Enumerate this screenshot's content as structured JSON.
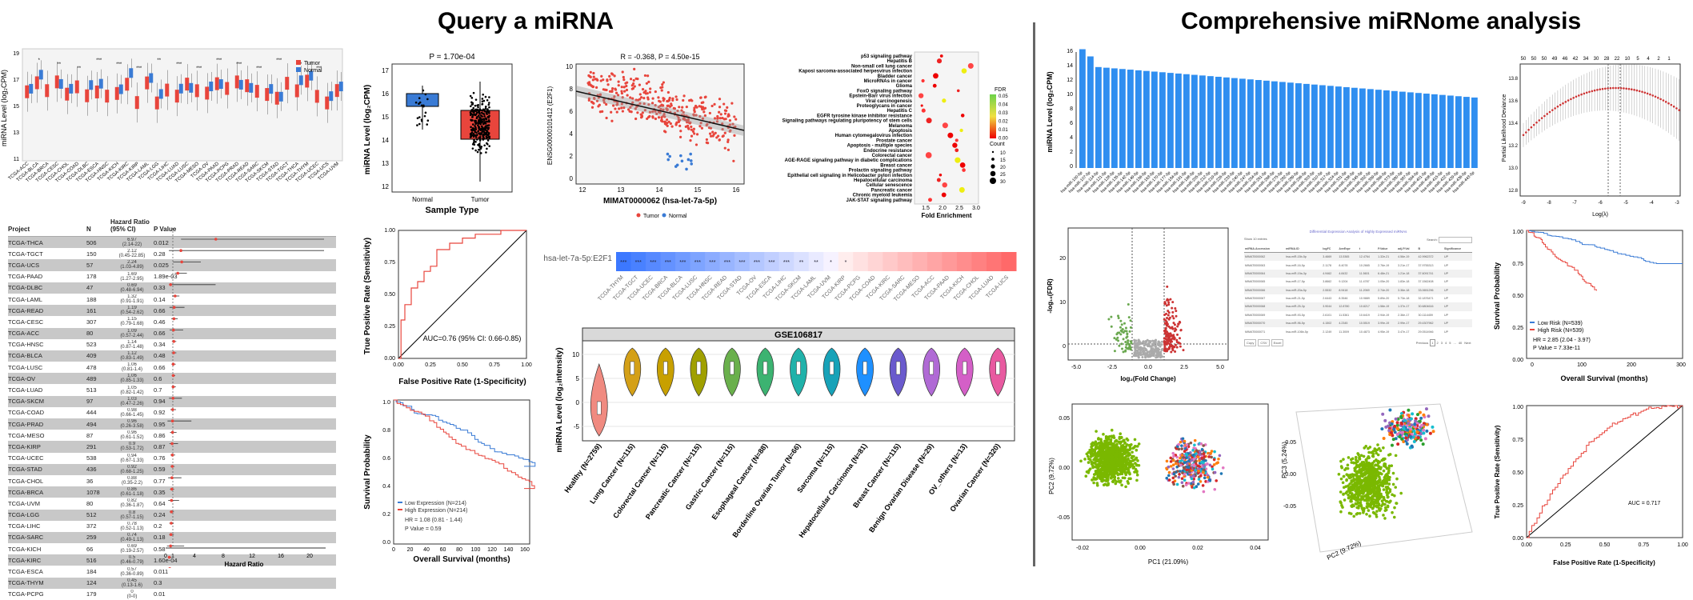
{
  "titles": {
    "left": "Query a miRNA",
    "right": "Comprehensive miRNome analysis"
  },
  "colors": {
    "tumor": "#e8453c",
    "normal": "#3a7bd5",
    "bar": "#2f8ef0",
    "green": "#6aa84f",
    "red": "#cc3333"
  },
  "boxplot_pan": {
    "ylabel": "miRNA Level (log₂CPM)",
    "legend": [
      "Tumor",
      "Normal"
    ],
    "yticks": [
      "19",
      "17",
      "15",
      "13",
      "11"
    ],
    "projects": [
      "TCGA-ACC",
      "TCGA-BLCA",
      "TCGA-BRCA",
      "TCGA-CESC",
      "TCGA-CHOL",
      "TCGA-COAD",
      "TCGA-DLBC",
      "TCGA-ESCA",
      "TCGA-HNSC",
      "TCGA-KICH",
      "TCGA-KIRC",
      "TCGA-KIRP",
      "TCGA-LAML",
      "TCGA-LGG",
      "TCGA-LIHC",
      "TCGA-LUAD",
      "TCGA-LUSC",
      "TCGA-MESO",
      "TCGA-OV",
      "TCGA-PAAD",
      "TCGA-PCPG",
      "TCGA-PRAD",
      "TCGA-READ",
      "TCGA-SARC",
      "TCGA-SKCM",
      "TCGA-STAD",
      "TCGA-TGCT",
      "TCGA-THCA",
      "TCGA-THYM",
      "TCGA-UCEC",
      "TCGA-UCS",
      "TCGA-UVM"
    ],
    "stars": [
      "*",
      "**",
      "**",
      "***",
      "***",
      "***",
      "**",
      "***",
      "***",
      "***",
      "***",
      "***",
      "***",
      "***",
      "***"
    ]
  },
  "forest": {
    "headers": {
      "project": "Project",
      "n": "N",
      "hr": "Hazard Ratio (95% CI)",
      "p": "P Value"
    },
    "xlabel": "Hazard Ratio",
    "xticks": [
      "0",
      "1",
      "4",
      "8",
      "12",
      "16",
      "20"
    ],
    "rows": [
      {
        "project": "TCGA-THCA",
        "n": "506",
        "hr": "6.97",
        "ci": "(2.14-22)",
        "p": "0.012",
        "est": 6.97,
        "lo": 2.14,
        "hi": 22
      },
      {
        "project": "TCGA-TGCT",
        "n": "150",
        "hr": "2.12",
        "ci": "(0.45-22.85)",
        "p": "0.28",
        "est": 2.12,
        "lo": 0.45,
        "hi": 22.85
      },
      {
        "project": "TCGA-UCS",
        "n": "57",
        "hr": "2.24",
        "ci": "(1.03-4.89)",
        "p": "0.025",
        "est": 2.24,
        "lo": 1.03,
        "hi": 4.89
      },
      {
        "project": "TCGA-PAAD",
        "n": "178",
        "hr": "1.69",
        "ci": "(1.27-2.95)",
        "p": "1.89e-03",
        "est": 1.69,
        "lo": 1.27,
        "hi": 2.95
      },
      {
        "project": "TCGA-DLBC",
        "n": "47",
        "hr": "0.69",
        "ci": "(0.48-6.94)",
        "p": "0.33",
        "est": 0.69,
        "lo": 0.48,
        "hi": 6.94
      },
      {
        "project": "TCGA-LAML",
        "n": "188",
        "hr": "1.32",
        "ci": "(0.91-1.91)",
        "p": "0.14",
        "est": 1.32,
        "lo": 0.91,
        "hi": 1.91
      },
      {
        "project": "TCGA-READ",
        "n": "161",
        "hr": "1.19",
        "ci": "(0.54-2.62)",
        "p": "0.66",
        "est": 1.19,
        "lo": 0.54,
        "hi": 2.62
      },
      {
        "project": "TCGA-CESC",
        "n": "307",
        "hr": "1.15",
        "ci": "(0.79-1.68)",
        "p": "0.46",
        "est": 1.15,
        "lo": 0.79,
        "hi": 1.68
      },
      {
        "project": "TCGA-ACC",
        "n": "80",
        "hr": "1.09",
        "ci": "(0.57-2.44)",
        "p": "0.66",
        "est": 1.09,
        "lo": 0.57,
        "hi": 2.44
      },
      {
        "project": "TCGA-HNSC",
        "n": "523",
        "hr": "1.14",
        "ci": "(0.87-1.48)",
        "p": "0.34",
        "est": 1.14,
        "lo": 0.87,
        "hi": 1.48
      },
      {
        "project": "TCGA-BLCA",
        "n": "409",
        "hr": "1.12",
        "ci": "(0.83-1.49)",
        "p": "0.48",
        "est": 1.12,
        "lo": 0.83,
        "hi": 1.49
      },
      {
        "project": "TCGA-LUSC",
        "n": "478",
        "hr": "1.06",
        "ci": "(0.81-1.4)",
        "p": "0.66",
        "est": 1.06,
        "lo": 0.81,
        "hi": 1.4
      },
      {
        "project": "TCGA-OV",
        "n": "489",
        "hr": "1.06",
        "ci": "(0.85-1.33)",
        "p": "0.6",
        "est": 1.06,
        "lo": 0.85,
        "hi": 1.33
      },
      {
        "project": "TCGA-LUAD",
        "n": "513",
        "hr": "1.05",
        "ci": "(0.82-1.42)",
        "p": "0.7",
        "est": 1.05,
        "lo": 0.82,
        "hi": 1.42
      },
      {
        "project": "TCGA-SKCM",
        "n": "97",
        "hr": "1.03",
        "ci": "(0.47-2.26)",
        "p": "0.94",
        "est": 1.03,
        "lo": 0.47,
        "hi": 2.26
      },
      {
        "project": "TCGA-COAD",
        "n": "444",
        "hr": "0.98",
        "ci": "(0.66-1.45)",
        "p": "0.92",
        "est": 0.98,
        "lo": 0.66,
        "hi": 1.45
      },
      {
        "project": "TCGA-PRAD",
        "n": "494",
        "hr": "0.96",
        "ci": "(0.26-3.58)",
        "p": "0.95",
        "est": 0.96,
        "lo": 0.26,
        "hi": 3.58
      },
      {
        "project": "TCGA-MESO",
        "n": "87",
        "hr": "0.96",
        "ci": "(0.61-1.52)",
        "p": "0.86",
        "est": 0.96,
        "lo": 0.61,
        "hi": 1.52
      },
      {
        "project": "TCGA-KIRP",
        "n": "291",
        "hr": "0.9",
        "ci": "(0.53-1.72)",
        "p": "0.87",
        "est": 0.9,
        "lo": 0.53,
        "hi": 1.72
      },
      {
        "project": "TCGA-UCEC",
        "n": "538",
        "hr": "0.94",
        "ci": "(0.67-1.33)",
        "p": "0.76",
        "est": 0.94,
        "lo": 0.67,
        "hi": 1.33
      },
      {
        "project": "TCGA-STAD",
        "n": "436",
        "hr": "0.92",
        "ci": "(0.68-1.25)",
        "p": "0.59",
        "est": 0.92,
        "lo": 0.68,
        "hi": 1.25
      },
      {
        "project": "TCGA-CHOL",
        "n": "36",
        "hr": "0.88",
        "ci": "(0.35-2.2)",
        "p": "0.77",
        "est": 0.88,
        "lo": 0.35,
        "hi": 2.2
      },
      {
        "project": "TCGA-BRCA",
        "n": "1078",
        "hr": "0.86",
        "ci": "(0.61-1.18)",
        "p": "0.35",
        "est": 0.86,
        "lo": 0.61,
        "hi": 1.18
      },
      {
        "project": "TCGA-UVM",
        "n": "80",
        "hr": "0.82",
        "ci": "(0.36-1.87)",
        "p": "0.64",
        "est": 0.82,
        "lo": 0.36,
        "hi": 1.87
      },
      {
        "project": "TCGA-LGG",
        "n": "512",
        "hr": "0.8",
        "ci": "(0.57-1.15)",
        "p": "0.24",
        "est": 0.8,
        "lo": 0.57,
        "hi": 1.15
      },
      {
        "project": "TCGA-LIHC",
        "n": "372",
        "hr": "0.78",
        "ci": "(0.52-1.13)",
        "p": "0.2",
        "est": 0.78,
        "lo": 0.52,
        "hi": 1.13
      },
      {
        "project": "TCGA-SARC",
        "n": "259",
        "hr": "0.74",
        "ci": "(0.49-1.13)",
        "p": "0.18",
        "est": 0.74,
        "lo": 0.49,
        "hi": 1.13
      },
      {
        "project": "TCGA-KICH",
        "n": "66",
        "hr": "0.69",
        "ci": "(0.19-2.57)",
        "p": "0.58",
        "est": 0.69,
        "lo": 0.19,
        "hi": 2.57
      },
      {
        "project": "TCGA-KIRC",
        "n": "516",
        "hr": "0.5",
        "ci": "(0.46-0.79)",
        "p": "1.60e-04",
        "est": 0.5,
        "lo": 0.46,
        "hi": 0.79
      },
      {
        "project": "TCGA-ESCA",
        "n": "184",
        "hr": "0.57",
        "ci": "(0.36-0.89)",
        "p": "0.011",
        "est": 0.57,
        "lo": 0.36,
        "hi": 0.89
      },
      {
        "project": "TCGA-THYM",
        "n": "124",
        "hr": "0.45",
        "ci": "(0.13-1.6)",
        "p": "0.3",
        "est": 0.45,
        "lo": 0.13,
        "hi": 1.6
      },
      {
        "project": "TCGA-PCPG",
        "n": "179",
        "hr": "0",
        "ci": "(0-0)",
        "p": "0.01",
        "est": 0,
        "lo": 0,
        "hi": 0
      }
    ]
  },
  "normal_tumor_box": {
    "title": "P = 1.70e-04",
    "ylabel": "miRNA Level (log₂CPM)",
    "xlabel": "Sample Type",
    "categories": [
      "Normal",
      "Tumor"
    ],
    "yticks": [
      "17",
      "16",
      "15",
      "14",
      "13",
      "12"
    ]
  },
  "roc_left": {
    "xlabel": "False Positive Rate (1-Specificity)",
    "ylabel": "True Positive Rate (Sensitivity)",
    "auc": "AUC=0.76 (95% CI: 0.66-0.85)",
    "ticks": [
      "0.00",
      "0.25",
      "0.50",
      "0.75",
      "1.00"
    ]
  },
  "km_left": {
    "ylabel": "Survival Probability",
    "xlabel": "Overall Survival (months)",
    "legend_low": "Low Expression (N=214)",
    "legend_high": "High Expression (N=214)",
    "hr": "HR = 1.08 (0.81 - 1.44)",
    "p": "P Value = 0.59",
    "xticks": [
      "0",
      "20",
      "40",
      "60",
      "80",
      "100",
      "120",
      "140",
      "160"
    ],
    "yticks": [
      "1.0",
      "0.8",
      "0.6",
      "0.4",
      "0.2",
      "0.0"
    ]
  },
  "scatter": {
    "title": "R = -0.368, P = 4.50e-15",
    "xlabel": "MIMAT0000062 (hsa-let-7a-5p)",
    "ylabel": "ENSG00000101412 (E2F1)",
    "legend": [
      "Tumor",
      "Normal"
    ],
    "xticks": [
      "12",
      "13",
      "14",
      "15",
      "16"
    ],
    "yticks": [
      "10",
      "8",
      "6",
      "4",
      "2",
      "0"
    ]
  },
  "enrichment": {
    "xlabel": "Fold Enrichment",
    "xticks": [
      "1.5",
      "2.0",
      "2.5",
      "3.0"
    ],
    "fdr_title": "FDR",
    "fdr_ticks": [
      "0.05",
      "0.04",
      "0.03",
      "0.02",
      "0.01",
      "0.00"
    ],
    "count_title": "Count",
    "count_ticks": [
      "10",
      "15",
      "20",
      "25",
      "30"
    ],
    "pathways": [
      "p53 signaling pathway",
      "Hepatitis B",
      "Non-small cell lung cancer",
      "Kaposi sarcoma-associated herpesvirus infection",
      "Bladder cancer",
      "MicroRNAs in cancer",
      "Glioma",
      "FoxO signaling pathway",
      "Epstein-Barr virus infection",
      "Viral carcinogenesis",
      "Proteoglycans in cancer",
      "Hepatitis C",
      "EGFR tyrosine kinase inhibitor resistance",
      "Signaling pathways regulating pluripotency of stem cells",
      "Melanoma",
      "Apoptosis",
      "Human cytomegalovirus infection",
      "Prostate cancer",
      "Apoptosis - multiple species",
      "Endocrine resistance",
      "Colorectal cancer",
      "AGE-RAGE signaling pathway in diabetic complications",
      "Breast cancer",
      "Prolactin signaling pathway",
      "Epithelial cell signaling in Helicobacter pylori infection",
      "Hepatocellular carcinoma",
      "Cellular senescence",
      "Pancreatic cancer",
      "Chronic myeloid leukemia",
      "JAK-STAT signaling pathway"
    ]
  },
  "heatmap": {
    "row_label": "hsa-let-7a-5p:E2F1",
    "columns": [
      "TCGA-THYM",
      "TCGA-TGCT",
      "TCGA-UCEC",
      "TCGA-BRCA",
      "TCGA-BLCA",
      "TCGA-LUSC",
      "TCGA-HNSC",
      "TCGA-READ",
      "TCGA-STAD",
      "TCGA-OV",
      "TCGA-ESCA",
      "TCGA-LIHC",
      "TCGA-SKCM",
      "TCGA-LAML",
      "TCGA-UVM",
      "TCGA-KIRP",
      "TCGA-PCPG",
      "TCGA-COAD",
      "TCGA-KIRC",
      "TCGA-SARC",
      "TCGA-MESO",
      "TCGA-ACC",
      "TCGA-PAAD",
      "TCGA-KICH",
      "TCGA-CHOL",
      "TCGA-LUAD",
      "TCGA-UCS"
    ],
    "stars": [
      "***",
      "***",
      "***",
      "***",
      "***",
      "***",
      "***",
      "***",
      "***",
      "***",
      "***",
      "***",
      "**",
      "**",
      "*",
      "*",
      "",
      "",
      "",
      "",
      "",
      "",
      "",
      "",
      "",
      "",
      ""
    ]
  },
  "violin": {
    "title": "GSE106817",
    "ylabel": "miRNA Level (log₂intensity)",
    "yticks": [
      "10",
      "5",
      "0",
      "-5"
    ],
    "groups": [
      "Healthy (N=2759)",
      "Lung Cancer (N=115)",
      "Colorectal Cancer (N=115)",
      "Pancreatic Cancer (N=115)",
      "Gastric Cancer (N=115)",
      "Esophageal Cancer (N=88)",
      "Borderline Ovarian Tumor (N=66)",
      "Sarcoma (N=115)",
      "Hepatocellular Carcinoma (N=81)",
      "Breast Cancer (N=115)",
      "Benign Ovarian Disease (N=29)",
      "OV_others (N=13)",
      "Ovarian Cancer (N=320)"
    ],
    "colors": [
      "#f08a80",
      "#d4a017",
      "#c8a000",
      "#a0a000",
      "#6ab04c",
      "#3cb371",
      "#20b2aa",
      "#17a2b8",
      "#1e90ff",
      "#6a5acd",
      "#b06ad5",
      "#d45fc7",
      "#e85aa0"
    ]
  },
  "fc_bars": {
    "ylabel": "miRNA Level (log₂CPM)",
    "yticks": [
      "0",
      "2",
      "4",
      "6",
      "8",
      "10",
      "12",
      "14",
      "16"
    ]
  },
  "lasso": {
    "ylabel": "Partial Likelihood Deviance",
    "xlabel": "Log(λ)",
    "top_ticks": [
      "50",
      "50",
      "50",
      "49",
      "46",
      "42",
      "34",
      "30",
      "28",
      "22",
      "10",
      "5",
      "4",
      "2",
      "1"
    ],
    "xticks": [
      "-9",
      "-8",
      "-7",
      "-6",
      "-5",
      "-4",
      "-3"
    ],
    "yticks": [
      "13.8",
      "13.6",
      "13.4",
      "13.2",
      "13.0",
      "12.8"
    ]
  },
  "volcano": {
    "ylabel": "-log₁₀(FDR)",
    "xlabel": "log₂(Fold Change)",
    "xticks": [
      "-5.0",
      "-2.5",
      "0.0",
      "2.5",
      "5.0"
    ],
    "yticks": [
      "20",
      "10",
      "0"
    ]
  },
  "dtable": {
    "title": "Differential Expression Analysis of Highly Expressed miRNAs",
    "show": "Show 10 entries",
    "search": "Search:",
    "headers": [
      "miRNA.Accession",
      "miRNA.ID",
      "logFC",
      "AveExpr",
      "t",
      "P.Value",
      "adj.P.Val",
      "B",
      "Significance"
    ],
    "rows": [
      [
        "MIMAT0000062",
        "hsa-miR-15b-5p",
        "3.4669",
        "13.5365",
        "12.4764",
        "1.32e-21",
        "4.56e-19",
        "42.9962372",
        "UP"
      ],
      [
        "MIMAT0000063",
        "hsa-miR-16-5p",
        "2.1178",
        "8.4078",
        "10.2665",
        "2.76e-19",
        "3.21e-17",
        "37.9755313",
        "UP"
      ],
      [
        "MIMAT0000064",
        "hsa-miR-19a-3p",
        "4.9462",
        "4.8432",
        "11.5601",
        "6.48e-21",
        "1.21e-18",
        "37.6091741",
        "UP"
      ],
      [
        "MIMAT0000065",
        "hsa-miR-17-5p",
        "3.8662",
        "9.1204",
        "11.4787",
        "1.05e-20",
        "1.83e-18",
        "37.1562408",
        "UP"
      ],
      [
        "MIMAT0000066",
        "hsa-miR-20a-5p",
        "2.5532",
        "8.9418",
        "11.2069",
        "2.74e-20",
        "3.36e-18",
        "33.0651296",
        "UP"
      ],
      [
        "MIMAT0000067",
        "hsa-miR-21-5p",
        "2.6443",
        "8.3546",
        "10.9889",
        "5.89e-20",
        "5.73e-18",
        "32.1876471",
        "UP"
      ],
      [
        "MIMAT0000068",
        "hsa-miR-25-3p",
        "3.9044",
        "12.8780",
        "10.8217",
        "1.58e-19",
        "1.37e-17",
        "30.6804616",
        "UP"
      ],
      [
        "MIMAT0000069",
        "hsa-miR-93-5p",
        "2.6101",
        "11.5361",
        "10.6419",
        "2.94e-19",
        "2.36e-17",
        "30.1114459",
        "UP"
      ],
      [
        "MIMAT0000070",
        "hsa-miR-96-5p",
        "4.1502",
        "4.2345",
        "10.5519",
        "3.99e-19",
        "2.99e-17",
        "29.4307962",
        "UP"
      ],
      [
        "MIMAT0000071",
        "hsa-miR-106b-5p",
        "2.1249",
        "11.3009",
        "10.4873",
        "4.95e-19",
        "3.47e-17",
        "29.0514946",
        "UP"
      ]
    ],
    "buttons": [
      "Copy",
      "CSV",
      "Excel"
    ],
    "pager": [
      "Previous",
      "1",
      "2",
      "3",
      "4",
      "5",
      "...",
      "40",
      "Next"
    ]
  },
  "km_right": {
    "ylabel": "Survival Probability",
    "xlabel": "Overall Survival (months)",
    "legend_low": "Low Risk (N=539)",
    "legend_high": "High Risk (N=539)",
    "hr": "HR = 2.85 (2.04 - 3.97)",
    "p": "P Value = 7.33e-11",
    "xticks": [
      "0",
      "100",
      "200",
      "300"
    ],
    "yticks": [
      "1.00",
      "0.75",
      "0.50",
      "0.25",
      "0.00"
    ]
  },
  "pca2d": {
    "xlabel": "PC1 (21.09%)",
    "ylabel": "PC2 (9.72%)",
    "xticks": [
      "-0.02",
      "0.00",
      "0.02",
      "0.04"
    ],
    "yticks": [
      "0.05",
      "0.00",
      "-0.05"
    ]
  },
  "pca3d": {
    "xlabel": "PC2 (9.72%)",
    "ylabel": "PC3 (5.24%)",
    "ticks": [
      "0.05",
      "0.00",
      "-0.05"
    ]
  },
  "roc_right": {
    "xlabel": "False Positive Rate (1-Specificity)",
    "ylabel": "True Positive Rate (Sensitivity)",
    "auc": "AUC = 0.717",
    "ticks": [
      "0.00",
      "0.25",
      "0.50",
      "0.75",
      "1.00"
    ]
  }
}
